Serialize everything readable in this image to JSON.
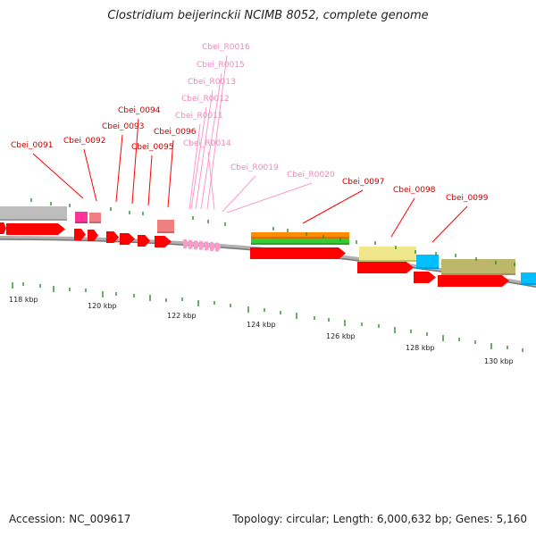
{
  "title": "Clostridium beijerinckii NCIMB 8052, complete genome",
  "footer": {
    "accession": "Accession: NC_009617",
    "summary": "Topology: circular; Length: 6,000,632 bp; Genes: 5,160"
  },
  "colors": {
    "cds": "#ff0000",
    "rna": "#ff99cc",
    "backbone": "#888888",
    "tick": "#2d8a2d",
    "gray": "#bdbdbd",
    "magenta": "#ff3399",
    "salmon": "#f08080",
    "orange": "#ff8c00",
    "green": "#33cc33",
    "khaki": "#f0e68c",
    "cyan": "#00bfff",
    "olive": "#bdb76b"
  },
  "scale": {
    "ticks": [
      {
        "label": "118 kbp"
      },
      {
        "label": "120 kbp"
      },
      {
        "label": "122 kbp"
      },
      {
        "label": "124 kbp"
      },
      {
        "label": "126 kbp"
      },
      {
        "label": "128 kbp"
      },
      {
        "label": "130 kbp"
      }
    ]
  },
  "genes": [
    {
      "label": "Cbei_0091",
      "type": "cds"
    },
    {
      "label": "Cbei_0092",
      "type": "cds"
    },
    {
      "label": "Cbei_0093",
      "type": "cds"
    },
    {
      "label": "Cbei_0094",
      "type": "cds"
    },
    {
      "label": "Cbei_0095",
      "type": "cds"
    },
    {
      "label": "Cbei_0096",
      "type": "cds"
    },
    {
      "label": "Cbei_R0016",
      "type": "rna"
    },
    {
      "label": "Cbei_R0015",
      "type": "rna"
    },
    {
      "label": "Cbei_R0013",
      "type": "rna"
    },
    {
      "label": "Cbei_R0012",
      "type": "rna"
    },
    {
      "label": "Cbei_R0011",
      "type": "rna"
    },
    {
      "label": "Cbei_R0014",
      "type": "rna"
    },
    {
      "label": "Cbei_R0019",
      "type": "rna"
    },
    {
      "label": "Cbei_R0020",
      "type": "rna"
    },
    {
      "label": "Cbei_0097",
      "type": "cds"
    },
    {
      "label": "Cbei_0098",
      "type": "cds"
    },
    {
      "label": "Cbei_0099",
      "type": "cds"
    }
  ]
}
